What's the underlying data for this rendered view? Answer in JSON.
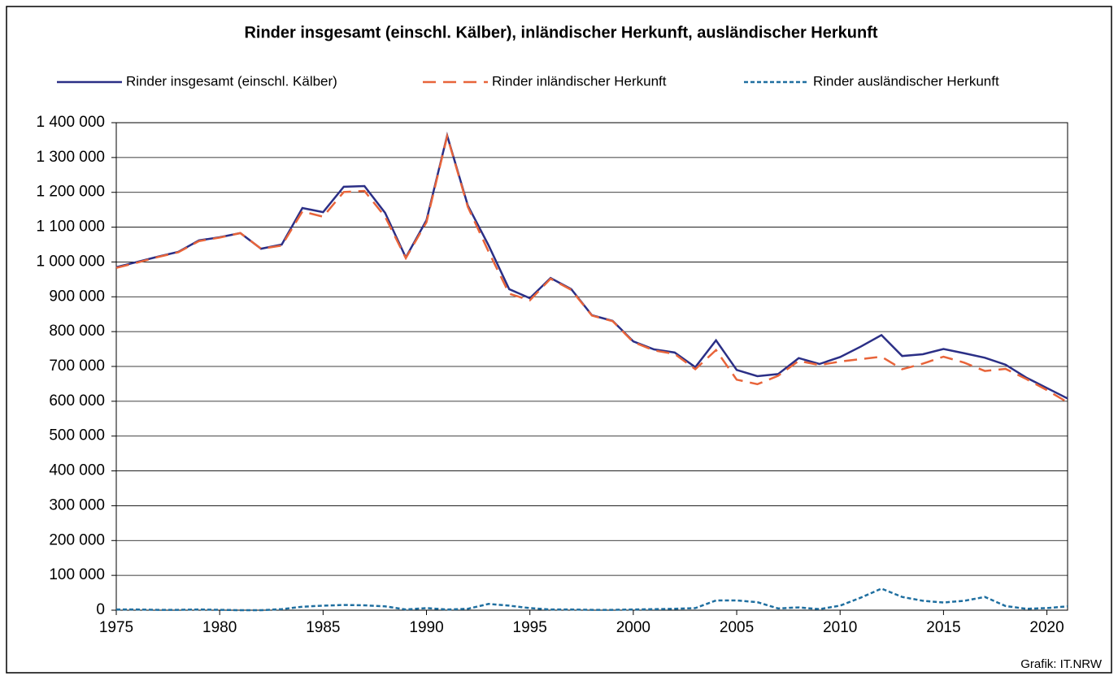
{
  "chart_data": {
    "type": "line",
    "title": "Rinder insgesamt (einschl. Kälber), inländischer Herkunft, ausländischer Herkunft",
    "source": "Grafik: IT.NRW",
    "x": [
      1975,
      1976,
      1977,
      1978,
      1979,
      1980,
      1981,
      1982,
      1983,
      1984,
      1985,
      1986,
      1987,
      1988,
      1989,
      1990,
      1991,
      1992,
      1993,
      1994,
      1995,
      1996,
      1997,
      1998,
      1999,
      2000,
      2001,
      2002,
      2003,
      2004,
      2005,
      2006,
      2007,
      2008,
      2009,
      2010,
      2011,
      2012,
      2013,
      2014,
      2015,
      2016,
      2017,
      2018,
      2019,
      2020,
      2021
    ],
    "series": [
      {
        "name": "Rinder insgesamt (einschl. Kälber)",
        "color": "#2b2f86",
        "style": "solid",
        "values": [
          985000,
          1000000,
          1015000,
          1029000,
          1062000,
          1071000,
          1083000,
          1038000,
          1050000,
          1155000,
          1143000,
          1216000,
          1218000,
          1141000,
          1013000,
          1120000,
          1363000,
          1162000,
          1048000,
          922000,
          896000,
          954000,
          922000,
          847000,
          831000,
          772000,
          749000,
          740000,
          698000,
          775000,
          690000,
          672000,
          678000,
          724000,
          707000,
          727000,
          757000,
          790000,
          730000,
          735000,
          750000,
          738000,
          725000,
          705000,
          668000,
          638000,
          608000
        ]
      },
      {
        "name": "Rinder inländischer Herkunft",
        "color": "#e8643a",
        "style": "dashed",
        "values": [
          983000,
          998000,
          1014000,
          1028000,
          1060000,
          1070000,
          1083000,
          1038000,
          1047000,
          1145000,
          1130000,
          1201000,
          1204000,
          1130000,
          1011000,
          1114000,
          1361000,
          1158000,
          1030000,
          909000,
          890000,
          952000,
          920000,
          846000,
          830000,
          770000,
          746000,
          736000,
          692000,
          747000,
          662000,
          649000,
          673000,
          716000,
          704000,
          714000,
          721000,
          728000,
          692000,
          708000,
          728000,
          711000,
          687000,
          693000,
          664000,
          632000,
          597000
        ]
      },
      {
        "name": "Rinder ausländischer Herkunft",
        "color": "#1f6fa0",
        "style": "dotted",
        "values": [
          2000,
          2000,
          1000,
          1000,
          2000,
          1000,
          0,
          0,
          3000,
          10000,
          13000,
          15000,
          14000,
          11000,
          2000,
          6000,
          2000,
          4000,
          18000,
          13000,
          6000,
          2000,
          2000,
          1000,
          1000,
          2000,
          3000,
          4000,
          6000,
          28000,
          28000,
          23000,
          5000,
          8000,
          3000,
          13000,
          36000,
          62000,
          38000,
          27000,
          22000,
          27000,
          38000,
          12000,
          4000,
          6000,
          11000
        ]
      }
    ],
    "xlim": [
      1975,
      2021
    ],
    "xticks": [
      1975,
      1980,
      1985,
      1990,
      1995,
      2000,
      2005,
      2010,
      2015,
      2020
    ],
    "ylim": [
      0,
      1400000
    ],
    "yticks": [
      0,
      {
        "value": 100000,
        "label": "100 000"
      },
      {
        "value": 200000,
        "label": "200 000"
      },
      {
        "value": 300000,
        "label": "300 000"
      },
      {
        "value": 400000,
        "label": "400 000"
      },
      {
        "value": 500000,
        "label": "500 000"
      },
      {
        "value": 600000,
        "label": "600 000"
      },
      {
        "value": 700000,
        "label": "700 000"
      },
      {
        "value": 800000,
        "label": "800 000"
      },
      {
        "value": 900000,
        "label": "900 000"
      },
      {
        "value": 1000000,
        "label": "1 000 000"
      },
      {
        "value": 1100000,
        "label": "1 100 000"
      },
      {
        "value": 1200000,
        "label": "1 200 000"
      },
      {
        "value": 1300000,
        "label": "1 300 000"
      },
      {
        "value": 1400000,
        "label": "1 400 000"
      }
    ],
    "grid": true,
    "legend": "top"
  }
}
